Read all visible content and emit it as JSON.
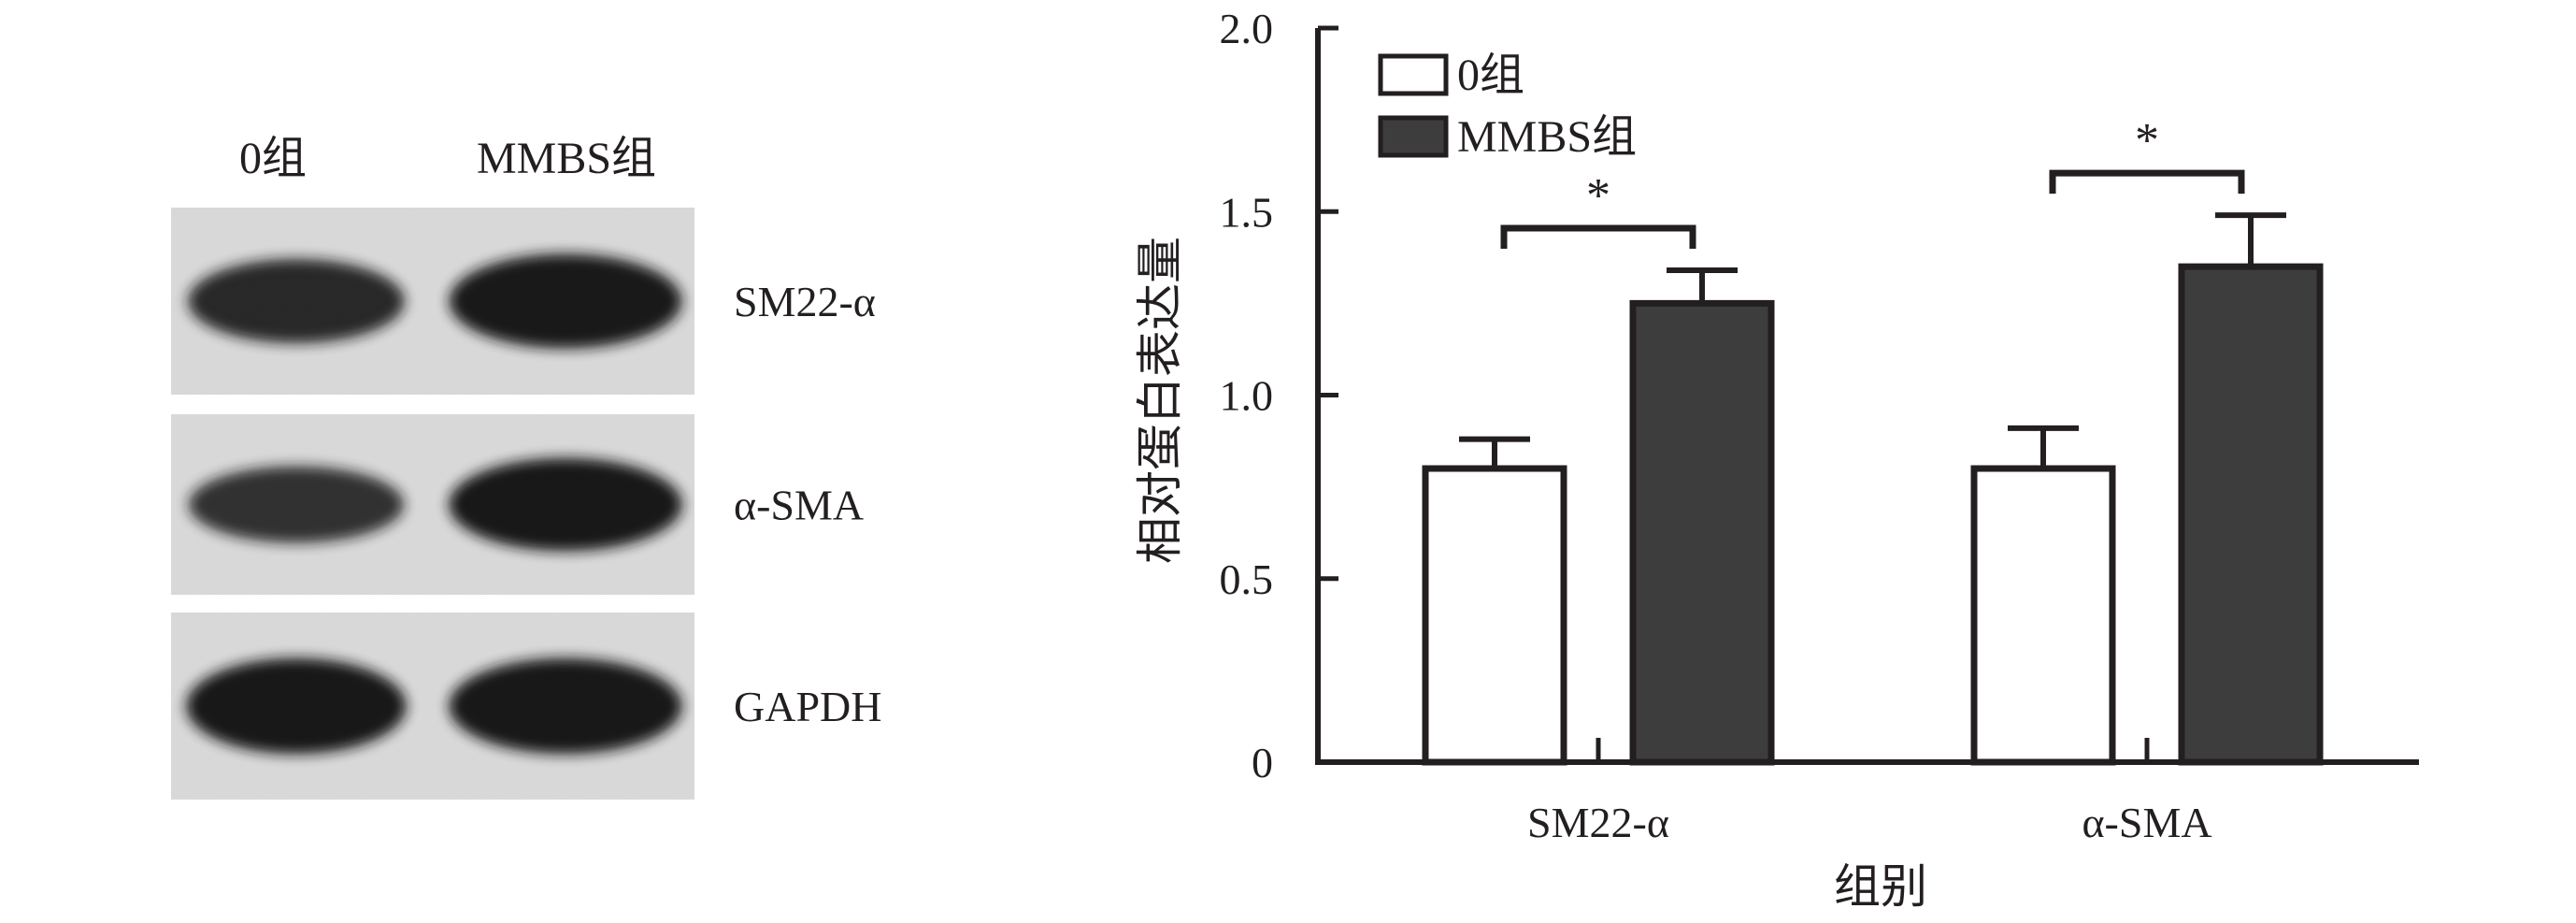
{
  "blot": {
    "lane_labels": [
      "0组",
      "MMBS组"
    ],
    "rows": [
      {
        "label": "SM22-α",
        "intensity": [
          0.78,
          0.95
        ]
      },
      {
        "label": "α-SMA",
        "intensity": [
          0.7,
          0.98
        ]
      },
      {
        "label": "GAPDH",
        "intensity": [
          0.97,
          0.97
        ]
      }
    ],
    "colors": {
      "background": "#d9d9d9",
      "band": "#151515"
    }
  },
  "chart_data": {
    "type": "bar",
    "categories": [
      "SM22-α",
      "α-SMA"
    ],
    "series": [
      {
        "name": "0组",
        "values": [
          0.8,
          0.8
        ],
        "errors": [
          0.08,
          0.11
        ],
        "color": "#ffffff"
      },
      {
        "name": "MMBS组",
        "values": [
          1.25,
          1.35
        ],
        "errors": [
          0.09,
          0.14
        ],
        "color": "#3d3d3d"
      }
    ],
    "ylim": [
      0,
      2.0
    ],
    "yticks": [
      0,
      0.5,
      1.0,
      1.5,
      2.0
    ],
    "ytick_labels": [
      "0",
      "0.5",
      "1.0",
      "1.5",
      "2.0"
    ],
    "xlabel": "组别",
    "ylabel": "相对蛋白表达量",
    "legend_position": "top-left",
    "significance": [
      {
        "category_index": 0,
        "label": "*"
      },
      {
        "category_index": 1,
        "label": "*"
      }
    ],
    "grid": false
  }
}
